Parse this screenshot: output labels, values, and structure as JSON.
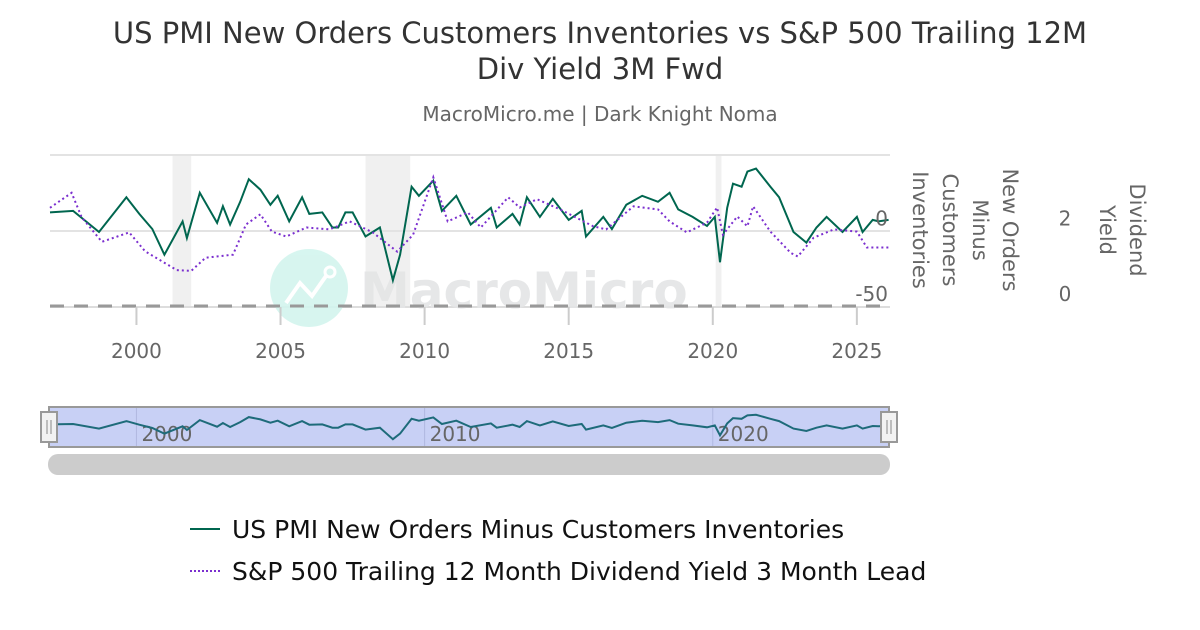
{
  "title": "US PMI New Orders Customers Inventories vs S&P 500 Trailing 12M Div Yield 3M Fwd",
  "subtitle": "MacroMicro.me | Dark Knight Noma",
  "watermark": "MacroMicro",
  "colors": {
    "pmi": "#00664f",
    "div": "#7b2fcf",
    "recession": "#f0f0f0",
    "navigator": "#c8d0f5"
  },
  "chart_data": {
    "type": "line",
    "xlim": [
      1997.0,
      2026.15
    ],
    "x_ticks": [
      "2000",
      "2005",
      "2010",
      "2015",
      "2020",
      "2025"
    ],
    "navigator_ticks": [
      "2000",
      "2010",
      "2020"
    ],
    "recessions": [
      [
        2001.25,
        2001.9
      ],
      [
        2007.95,
        2009.5
      ],
      [
        2020.1,
        2020.3
      ]
    ],
    "y_left": {
      "label": "New Orders Minus Customers Inventories",
      "lim": [
        -50,
        50
      ],
      "ticks": [
        "0",
        "-50"
      ],
      "tick_values": [
        0,
        -50
      ]
    },
    "y_right": {
      "label": "Dividend Yield",
      "lim": [
        0,
        4
      ],
      "ticks": [
        "2",
        "0"
      ],
      "tick_values": [
        2,
        0
      ]
    },
    "series": [
      {
        "name": "US PMI New Orders Minus Customers Inventories",
        "axis": "left",
        "style": "solid",
        "x": [
          1997.0,
          1997.8,
          1998.7,
          1999.65,
          2000.1,
          2000.55,
          2000.97,
          2001.6,
          2001.75,
          2002.2,
          2002.8,
          2003.0,
          2003.25,
          2003.6,
          2003.9,
          2004.3,
          2004.65,
          2004.9,
          2005.3,
          2005.75,
          2006.0,
          2006.45,
          2006.8,
          2007.0,
          2007.25,
          2007.5,
          2007.95,
          2008.45,
          2008.9,
          2009.15,
          2009.55,
          2009.8,
          2010.3,
          2010.6,
          2011.1,
          2011.6,
          2012.3,
          2012.5,
          2013.05,
          2013.3,
          2013.55,
          2014.0,
          2014.45,
          2015.0,
          2015.45,
          2015.6,
          2016.2,
          2016.5,
          2017.0,
          2017.55,
          2018.1,
          2018.5,
          2018.8,
          2019.3,
          2019.8,
          2020.07,
          2020.25,
          2020.5,
          2020.7,
          2021.0,
          2021.2,
          2021.5,
          2022.0,
          2022.3,
          2022.8,
          2023.25,
          2023.6,
          2023.95,
          2024.5,
          2025.0,
          2025.2,
          2025.55,
          2025.75,
          2026.1
        ],
        "y": [
          12,
          13,
          -1,
          22,
          11,
          1,
          -16,
          6,
          -5,
          25,
          5,
          16,
          4,
          19,
          34,
          27,
          17,
          23,
          6,
          22,
          11,
          12,
          2,
          2,
          12,
          12,
          -4,
          2,
          -33,
          -16,
          29,
          23,
          33,
          13,
          23,
          4,
          15,
          2,
          11,
          4,
          22,
          9,
          21,
          7,
          13,
          -4,
          9,
          1,
          17,
          23,
          19,
          25,
          14,
          9,
          3,
          9,
          -21,
          15,
          31,
          29,
          39,
          41,
          29,
          22,
          -1,
          -8,
          2,
          9,
          -1,
          9,
          -1,
          7,
          6,
          7
        ]
      },
      {
        "name": "S&P 500 Trailing 12 Month Dividend Yield 3 Month Lead",
        "axis": "right",
        "style": "dotted",
        "x": [
          1997.0,
          1997.75,
          1998.1,
          1998.8,
          1999.75,
          2000.3,
          2001.4,
          2001.9,
          2002.4,
          2003.35,
          2003.8,
          2004.3,
          2004.7,
          2005.2,
          2005.9,
          2006.7,
          2007.4,
          2008.2,
          2009.05,
          2009.6,
          2010.3,
          2010.8,
          2011.5,
          2011.95,
          2012.9,
          2013.3,
          2013.9,
          2014.7,
          2015.85,
          2016.3,
          2017.25,
          2018.1,
          2018.5,
          2019.1,
          2019.8,
          2020.15,
          2020.35,
          2020.85,
          2021.2,
          2021.4,
          2022.0,
          2022.7,
          2022.95,
          2023.5,
          2024.2,
          2025.0,
          2025.35,
          2026.1
        ],
        "y": [
          2.6,
          3.0,
          2.35,
          1.7,
          1.95,
          1.45,
          0.95,
          0.93,
          1.28,
          1.36,
          2.16,
          2.43,
          1.97,
          1.84,
          2.08,
          2.03,
          2.24,
          1.95,
          1.44,
          1.89,
          3.41,
          2.24,
          2.48,
          2.08,
          2.88,
          2.61,
          2.83,
          2.56,
          2.11,
          2.03,
          2.64,
          2.56,
          2.24,
          1.95,
          2.21,
          2.61,
          1.89,
          2.37,
          2.11,
          2.64,
          1.97,
          1.41,
          1.31,
          1.81,
          2.03,
          1.97,
          1.55,
          1.55
        ]
      }
    ],
    "legend_position": "bottom"
  },
  "legend": [
    {
      "label": "US PMI New Orders Minus Customers Inventories"
    },
    {
      "label": "S&P 500 Trailing 12 Month Dividend Yield 3 Month Lead"
    }
  ]
}
